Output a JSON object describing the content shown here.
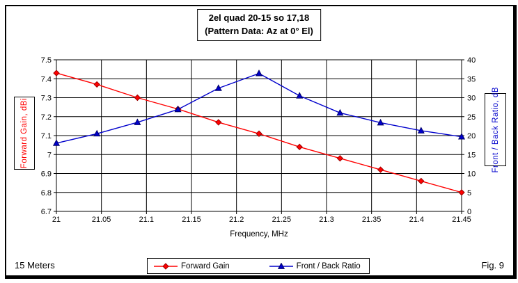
{
  "title": {
    "line1": "2el quad 20-15 so 17,18",
    "line2": "(Pattern Data: Az at 0° El)"
  },
  "footer": {
    "left": "15 Meters",
    "right": "Fig. 9"
  },
  "chart_data": {
    "type": "line",
    "title": "2el quad 20-15 so 17,18 (Pattern Data: Az at 0° El)",
    "xlabel": "Frequency, MHz",
    "x_range": [
      21,
      21.45
    ],
    "x_tick_labels": [
      "21",
      "21.05",
      "21.1",
      "21.15",
      "21.2",
      "21.25",
      "21.3",
      "21.35",
      "21.4",
      "21.45"
    ],
    "x": [
      21,
      21.045,
      21.09,
      21.135,
      21.18,
      21.225,
      21.27,
      21.315,
      21.36,
      21.405,
      21.45
    ],
    "left_axis": {
      "title": "Forward Gain, dBi",
      "min": 6.7,
      "max": 7.5,
      "tick_labels": [
        "7.5",
        "7.4",
        "7.3",
        "7.2",
        "7.1",
        "7",
        "6.9",
        "6.8",
        "6.7"
      ]
    },
    "right_axis": {
      "title": "Front / Back Ratio, dB",
      "min": 0,
      "max": 40,
      "tick_labels": [
        "40",
        "35",
        "30",
        "25",
        "20",
        "15",
        "10",
        "5",
        "0"
      ]
    },
    "series": [
      {
        "name": "Forward Gain",
        "axis": "left",
        "color": "#ff0000",
        "marker_edge": "#990000",
        "marker": "diamond",
        "values": [
          7.43,
          7.37,
          7.3,
          7.24,
          7.17,
          7.11,
          7.04,
          6.98,
          6.92,
          6.86,
          6.8
        ]
      },
      {
        "name": "Front / Back Ratio",
        "axis": "right",
        "color": "#0000cc",
        "marker_edge": "#000066",
        "marker": "triangle",
        "values": [
          18,
          20.5,
          23.5,
          26.9,
          32.5,
          36.4,
          30.5,
          26,
          23.4,
          21.3,
          19.7
        ]
      }
    ],
    "grid": true,
    "legend_position": "bottom"
  }
}
